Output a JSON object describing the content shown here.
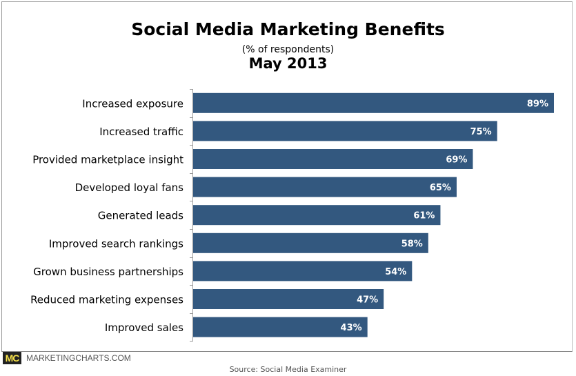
{
  "header": {
    "title": "Social Media Marketing Benefits",
    "subtitle": "(% of respondents)",
    "date": "May 2013"
  },
  "footer": {
    "logo": "MC",
    "site": "MARKETINGCHARTS.COM",
    "source": "Source: Social Media Examiner"
  },
  "colors": {
    "bar": "#33587f",
    "label": "#ffffff"
  },
  "chart_data": {
    "type": "bar",
    "orientation": "horizontal",
    "title": "Social Media Marketing Benefits",
    "subtitle": "(% of respondents)",
    "categories": [
      "Increased exposure",
      "Increased traffic",
      "Provided marketplace insight",
      "Developed loyal fans",
      "Generated leads",
      "Improved search rankings",
      "Grown business partnerships",
      "Reduced marketing expenses",
      "Improved sales"
    ],
    "values": [
      89,
      75,
      69,
      65,
      61,
      58,
      54,
      47,
      43
    ],
    "data_labels": [
      "89%",
      "75%",
      "69%",
      "65%",
      "61%",
      "58%",
      "54%",
      "47%",
      "43%"
    ],
    "xlim": [
      0,
      89
    ],
    "grid": false,
    "legend": "none"
  }
}
